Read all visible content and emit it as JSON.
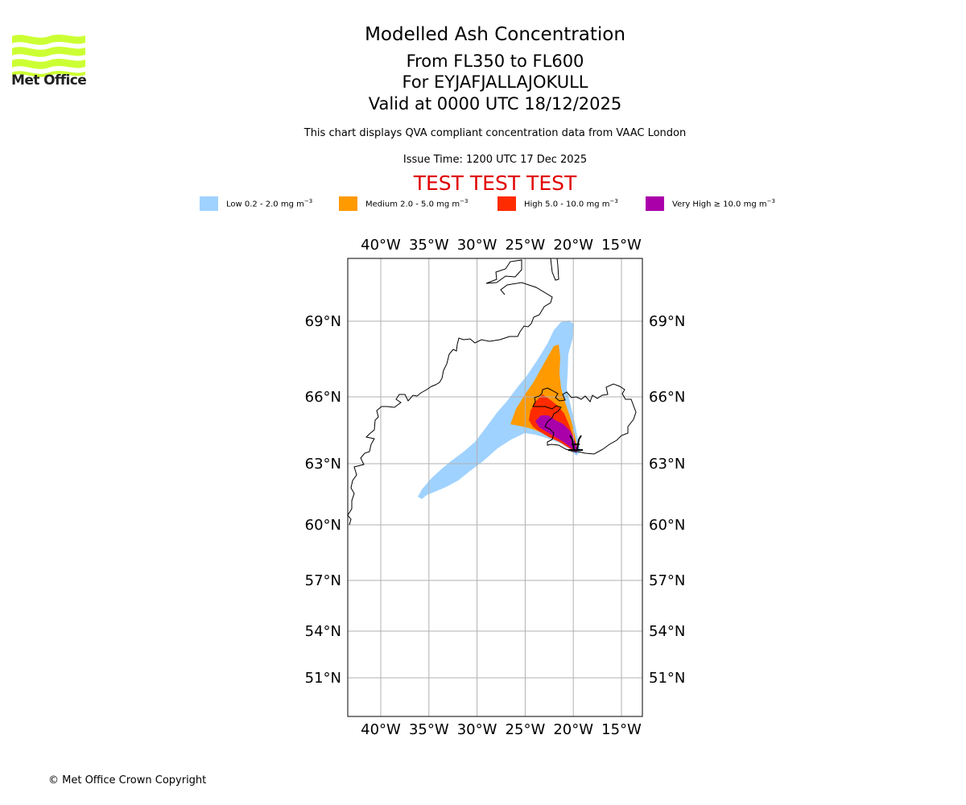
{
  "logo": {
    "name": "Met Office",
    "icon": "met-office-wave-logo",
    "color": "#ccff33"
  },
  "titles": {
    "main": "Modelled Ash Concentration",
    "levels": "From FL350 to FL600",
    "volcano": "For EYJAFJALLAJOKULL",
    "valid": "Valid at 0000 UTC 18/12/2025"
  },
  "note": "This chart displays QVA compliant concentration data from VAAC London",
  "issue_time": "Issue Time: 1200 UTC 17 Dec 2025",
  "test_banner": "TEST TEST TEST",
  "test_color": "#e00000",
  "legend": [
    {
      "label": "Low 0.2 - 2.0 mg m",
      "unit_exp": "−3",
      "color": "#a0d2ff"
    },
    {
      "label": "Medium 2.0 - 5.0 mg m",
      "unit_exp": "−3",
      "color": "#ff9a00"
    },
    {
      "label": "High 5.0 - 10.0 mg m",
      "unit_exp": "−3",
      "color": "#ff2b00"
    },
    {
      "label": "Very High ≥ 10.0 mg m",
      "unit_exp": "−3",
      "color": "#aa00aa"
    }
  ],
  "footer": "© Met Office Crown Copyright",
  "chart_data": {
    "type": "map",
    "title": "Modelled Ash Concentration",
    "subtitle": "From FL350 to FL600, For EYJAFJALLAJOKULL, Valid at 0000 UTC 18/12/2025",
    "projection": "lat-lon",
    "lon_ticks": [
      "40°W",
      "35°W",
      "30°W",
      "25°W",
      "20°W",
      "15°W"
    ],
    "lat_ticks": [
      "69°N",
      "66°N",
      "63°N",
      "60°N",
      "57°N",
      "54°N",
      "51°N"
    ],
    "lon_values": [
      -40,
      -35,
      -30,
      -25,
      -20,
      -15
    ],
    "lat_values": [
      69,
      66,
      63,
      60,
      57,
      54,
      51
    ],
    "grid": true,
    "gridline_color": "#b0b0b0",
    "extent": {
      "lon": [
        -43.4,
        -12.9
      ],
      "lat": [
        49,
        71.6
      ]
    },
    "volcano": {
      "name": "EYJAFJALLAJOKULL",
      "lat": 63.63,
      "lon": -19.62
    },
    "ash_regions": [
      {
        "level": "Low",
        "color": "#a0d2ff",
        "description": "broad plume extending SW from Iceland to ~61.5N 36W and N to ~69N 20W"
      },
      {
        "level": "Medium",
        "color": "#ff9a00",
        "description": "wedge over W Iceland from ~64.7N 26W to ~68N 21.5W"
      },
      {
        "level": "High",
        "color": "#ff2b00",
        "description": "W Iceland ~64N-65.7N, 24W-20.5W"
      },
      {
        "level": "Very High",
        "color": "#aa00aa",
        "description": "narrow core from ~65N 23.5W to volcano"
      }
    ]
  }
}
